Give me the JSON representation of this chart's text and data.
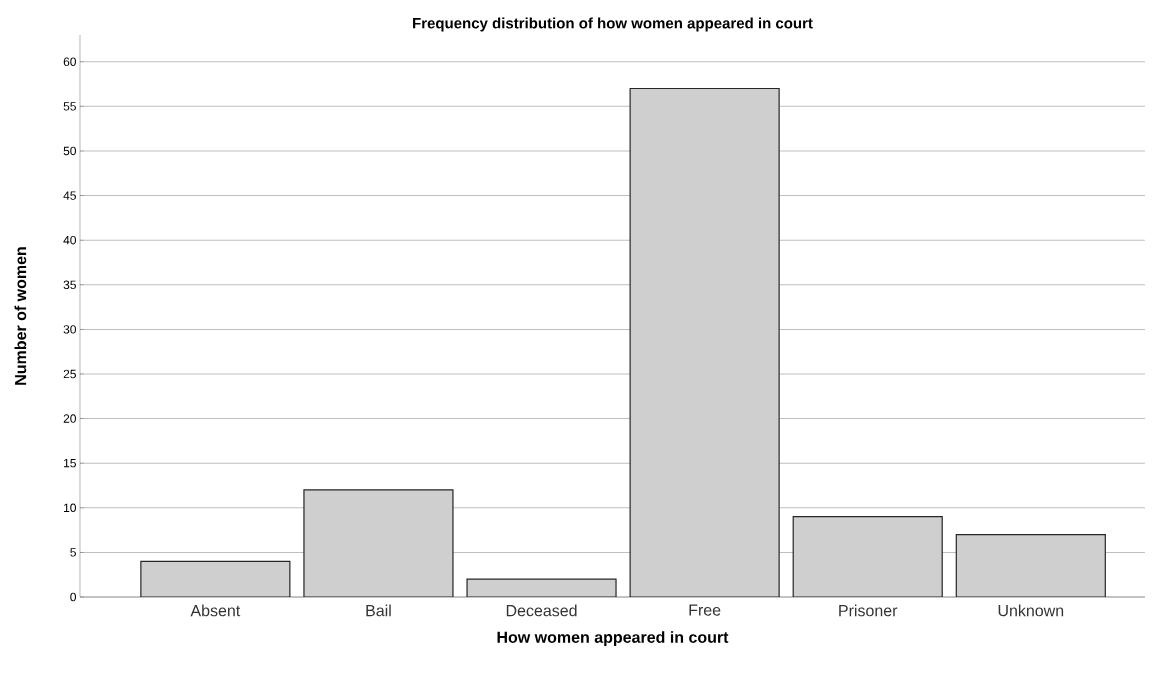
{
  "chart_data": {
    "type": "bar",
    "title": "Frequency distribution of how women appeared in court",
    "xlabel": "How women appeared in court",
    "ylabel": "Number of women",
    "categories": [
      "Absent",
      "Bail",
      "Deceased",
      "Free",
      "Prisoner",
      "Unknown"
    ],
    "values": [
      4,
      12,
      2,
      57,
      9,
      7
    ],
    "color": "#cfcfcf",
    "ylim": [
      0,
      63
    ],
    "yticks": [
      0,
      5,
      10,
      15,
      20,
      25,
      30,
      35,
      40,
      45,
      50,
      55,
      60
    ],
    "grid": "y"
  }
}
